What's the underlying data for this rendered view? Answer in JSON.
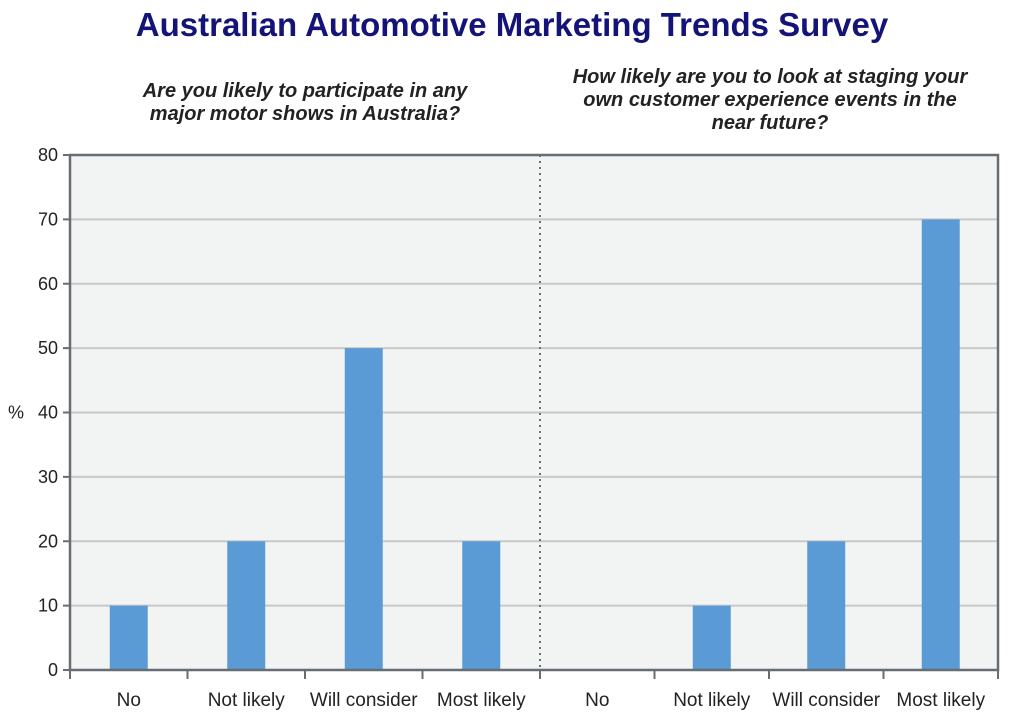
{
  "title": "Australian Automotive Marketing Trends Survey",
  "chart_data": [
    {
      "type": "bar",
      "title": "Are you likely to participate in any major motor shows in Australia?",
      "title_lines": [
        "Are you likely to participate in any",
        "major motor shows in Australia?"
      ],
      "categories": [
        "No",
        "Not likely",
        "Will consider",
        "Most likely"
      ],
      "values": [
        10,
        20,
        50,
        20
      ],
      "ylabel": "%",
      "ylim": [
        0,
        80
      ],
      "yticks": [
        0,
        10,
        20,
        30,
        40,
        50,
        60,
        70,
        80
      ],
      "grid": true,
      "bar_color": "#5b9bd5"
    },
    {
      "type": "bar",
      "title": "How likely are you to look at staging your own customer experience events in the near future?",
      "title_lines": [
        "How likely are you to look at staging your",
        "own customer experience events in the",
        "near future?"
      ],
      "categories": [
        "No",
        "Not likely",
        "Will consider",
        "Most likely"
      ],
      "values": [
        0,
        10,
        20,
        70
      ],
      "ylabel": "",
      "ylim": [
        0,
        80
      ],
      "grid": true,
      "bar_color": "#5b9bd5"
    }
  ],
  "colors": {
    "title": "#141478",
    "plot_background": "#f2f4f4",
    "gridline": "#c8c8c8",
    "axis": "#666e74",
    "divider": "#6a7277"
  }
}
